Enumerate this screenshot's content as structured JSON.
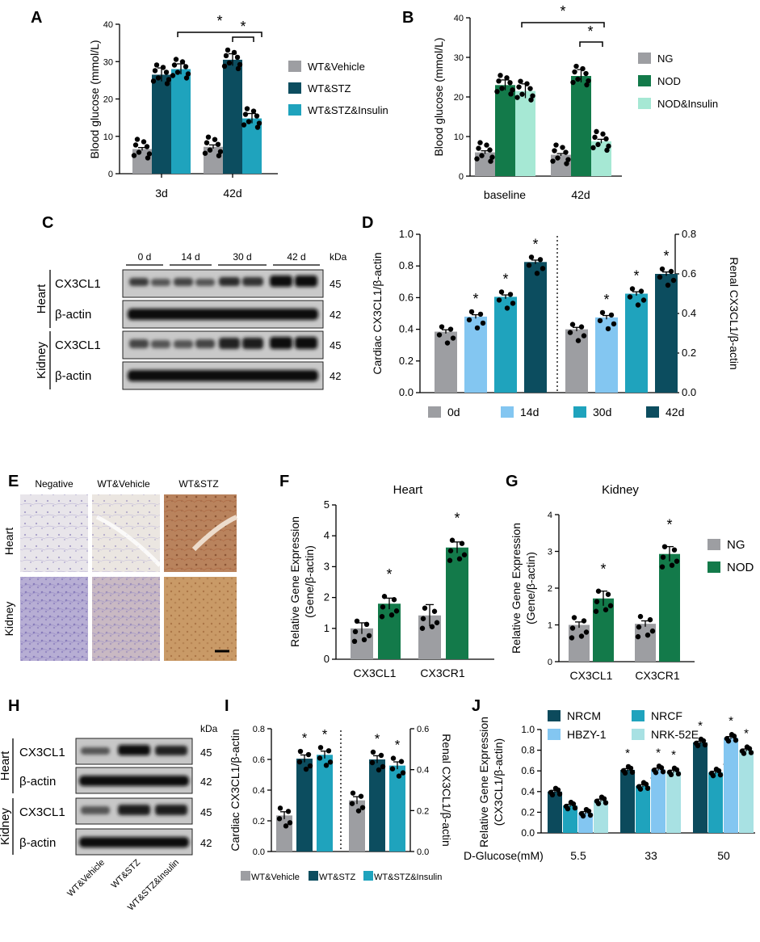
{
  "figure": {
    "panels": {
      "A": "A",
      "B": "B",
      "C": "C",
      "D": "D",
      "E": "E",
      "F": "F",
      "G": "G",
      "H": "H",
      "I": "I",
      "J": "J"
    }
  },
  "colors": {
    "gray": "#9d9ea2",
    "navy": "#0c4d5f",
    "teal": "#1fa3bd",
    "green": "#137a4a",
    "mint": "#a6e8d4",
    "light_blue": "#83c6f1",
    "pale_teal": "#a8e1e3",
    "dark_teal": "#0c4a5c"
  },
  "chart_data": [
    {
      "id": "A",
      "type": "bar",
      "title": "",
      "xlabel": "",
      "ylabel": "Blood glucose (mmol/L)",
      "ylim": [
        0,
        40
      ],
      "yticks": [
        "0",
        "10",
        "20",
        "30",
        "40"
      ],
      "categories": [
        "3d",
        "42d"
      ],
      "series": [
        {
          "name": "WT&Vehicle",
          "values": [
            6.6,
            7.2
          ]
        },
        {
          "name": "WT&STZ",
          "values": [
            26.5,
            30.5
          ]
        },
        {
          "name": "WT&STZ&Insulin",
          "values": [
            28.0,
            14.8
          ]
        }
      ],
      "errors": [
        [
          0.4,
          0.5
        ],
        [
          1.8,
          1.6
        ],
        [
          1.4,
          1.3
        ]
      ],
      "significance": [
        "*",
        "*"
      ]
    },
    {
      "id": "B",
      "type": "bar",
      "title": "",
      "xlabel": "",
      "ylabel": "Blood glucose (mmol/L)",
      "ylim": [
        0,
        40
      ],
      "yticks": [
        "0",
        "10",
        "20",
        "30",
        "40"
      ],
      "categories": [
        "baseline",
        "42d"
      ],
      "series": [
        {
          "name": "NG",
          "values": [
            6.0,
            5.4
          ]
        },
        {
          "name": "NOD",
          "values": [
            23.0,
            25.3
          ]
        },
        {
          "name": "NOD&Insulin",
          "values": [
            21.5,
            8.8
          ]
        }
      ],
      "errors": [
        [
          0.4,
          0.3
        ],
        [
          1.3,
          1.6
        ],
        [
          1.8,
          0.5
        ]
      ],
      "significance": [
        "*",
        "*"
      ]
    },
    {
      "id": "D",
      "type": "bar",
      "title": "",
      "xlabel": "",
      "ylabel": "Cardiac CX3CL1/β-actin",
      "ylabel_right": "Renal CX3CL1/β-actin",
      "ylim": [
        0,
        1.0
      ],
      "ylim_right": [
        0,
        0.8
      ],
      "yticks": [
        "0.0",
        "0.2",
        "0.4",
        "0.6",
        "0.8",
        "1.0"
      ],
      "yticks_right": [
        "0.0",
        "0.2",
        "0.4",
        "0.6",
        "0.8"
      ],
      "categories": [
        "0d",
        "14d",
        "30d",
        "42d"
      ],
      "series": [
        {
          "name": "Cardiac",
          "values": [
            0.385,
            0.48,
            0.605,
            0.825
          ]
        },
        {
          "name": "Renal",
          "values": [
            0.32,
            0.38,
            0.5,
            0.6
          ]
        }
      ],
      "significance": [
        "",
        "*",
        "*",
        "*"
      ]
    },
    {
      "id": "F",
      "type": "bar",
      "title": "Heart",
      "xlabel": "",
      "ylabel": "Relative Gene Expression (Gene/β-actin)",
      "ylabel_lines": [
        "Relative Gene Expression",
        "(Gene/β-actin)"
      ],
      "ylim": [
        0,
        5
      ],
      "yticks": [
        "0",
        "1",
        "2",
        "3",
        "4",
        "5"
      ],
      "categories": [
        "CX3CL1",
        "CX3CR1"
      ],
      "series": [
        {
          "name": "NG",
          "values": [
            1.0,
            1.42
          ]
        },
        {
          "name": "NOD",
          "values": [
            1.8,
            3.62
          ]
        }
      ],
      "significance": [
        "*",
        "*"
      ]
    },
    {
      "id": "G",
      "type": "bar",
      "title": "Kidney",
      "xlabel": "",
      "ylabel": "Relative Gene Expression (Gene/β-actin)",
      "ylabel_lines": [
        "Relative Gene Expression",
        "(Gene/β-actin)"
      ],
      "ylim": [
        0,
        4
      ],
      "yticks": [
        "0",
        "1",
        "2",
        "3",
        "4"
      ],
      "categories": [
        "CX3CL1",
        "CX3CR1"
      ],
      "series": [
        {
          "name": "NG",
          "values": [
            1.0,
            1.03
          ]
        },
        {
          "name": "NOD",
          "values": [
            1.72,
            2.93
          ]
        }
      ],
      "significance": [
        "*",
        "*"
      ]
    },
    {
      "id": "I",
      "type": "bar",
      "title": "",
      "xlabel": "",
      "ylabel": "Cardiac CX3CL1/β-actin",
      "ylabel_right": "Renal CX3CL1/β-actin",
      "ylim": [
        0,
        0.8
      ],
      "ylim_right": [
        0,
        0.6
      ],
      "yticks": [
        "0.0",
        "0.2",
        "0.4",
        "0.6",
        "0.8"
      ],
      "yticks_right": [
        "0.0",
        "0.2",
        "0.4",
        "0.6"
      ],
      "categories": [
        "WT&Vehicle",
        "WT&STZ",
        "WT&STZ&Insulin"
      ],
      "series": [
        {
          "name": "Cardiac",
          "values": [
            0.235,
            0.605,
            0.63
          ]
        },
        {
          "name": "Renal",
          "values": [
            0.25,
            0.45,
            0.42
          ]
        }
      ],
      "significance": [
        "",
        "*",
        "*"
      ]
    },
    {
      "id": "J",
      "type": "bar",
      "title": "",
      "xlabel": "D-Glucose(mM)",
      "ylabel": "Relative Gene Expression (CX3CL1/β-actin)",
      "ylabel_lines": [
        "Relative Gene Expression",
        "(CX3CL1/β-actin)"
      ],
      "ylim": [
        0,
        1.0
      ],
      "yticks": [
        "0.0",
        "0.2",
        "0.4",
        "0.6",
        "0.8",
        "1.0"
      ],
      "categories": [
        "5.5",
        "33",
        "50"
      ],
      "series": [
        {
          "name": "NRCM",
          "values": [
            0.4,
            0.61,
            0.875
          ]
        },
        {
          "name": "NRCF",
          "values": [
            0.265,
            0.455,
            0.585
          ]
        },
        {
          "name": "HBZY-1",
          "values": [
            0.195,
            0.615,
            0.92
          ]
        },
        {
          "name": "NRK-52E",
          "values": [
            0.315,
            0.595,
            0.8
          ]
        }
      ],
      "significance": [
        "",
        "*",
        "*"
      ]
    }
  ],
  "blot_C": {
    "time_labels": [
      "0 d",
      "14 d",
      "30 d",
      "42 d"
    ],
    "kda": "kDa",
    "tissues": [
      "Heart",
      "Kidney"
    ],
    "rows": [
      "CX3CL1",
      "β-actin",
      "CX3CL1",
      "β-actin"
    ],
    "sizes": [
      "45",
      "42",
      "45",
      "42"
    ]
  },
  "blot_H": {
    "kda": "kDa",
    "tissues": [
      "Heart",
      "Kidney"
    ],
    "rows": [
      "CX3CL1",
      "β-actin",
      "CX3CL1",
      "β-actin"
    ],
    "sizes": [
      "45",
      "42",
      "45",
      "42"
    ],
    "lanes": [
      "WT&Vehicle",
      "WT&STZ",
      "WT&STZ&Insulin"
    ]
  },
  "panel_E": {
    "columns": [
      "Negative",
      "WT&Vehicle",
      "WT&STZ"
    ],
    "rows": [
      "Heart",
      "Kidney"
    ]
  }
}
